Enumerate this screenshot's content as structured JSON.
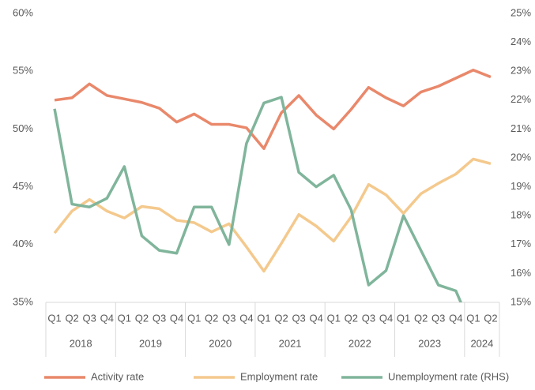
{
  "chart_data": {
    "type": "line",
    "categories": [
      "Q1",
      "Q2",
      "Q3",
      "Q4",
      "Q1",
      "Q2",
      "Q3",
      "Q4",
      "Q1",
      "Q2",
      "Q3",
      "Q4",
      "Q1",
      "Q2",
      "Q3",
      "Q4",
      "Q1",
      "Q2",
      "Q3",
      "Q4",
      "Q1",
      "Q2",
      "Q3",
      "Q4",
      "Q1",
      "Q2"
    ],
    "category_groups": [
      {
        "label": "2018",
        "span": 4
      },
      {
        "label": "2019",
        "span": 4
      },
      {
        "label": "2020",
        "span": 4
      },
      {
        "label": "2021",
        "span": 4
      },
      {
        "label": "2022",
        "span": 4
      },
      {
        "label": "2023",
        "span": 4
      },
      {
        "label": "2024",
        "span": 2
      }
    ],
    "series": [
      {
        "name": "Activity rate",
        "color": "#e9886b",
        "values": [
          52.5,
          52.7,
          53.9,
          52.9,
          52.6,
          52.3,
          51.8,
          50.6,
          51.3,
          50.4,
          50.4,
          50.1,
          48.3,
          51.4,
          52.9,
          51.2,
          50.0,
          51.7,
          53.6,
          52.7,
          52.0,
          53.2,
          53.7,
          54.4,
          55.1,
          54.5
        ]
      },
      {
        "name": "Employment rate",
        "color": "#f4c98d",
        "values": [
          41.0,
          42.9,
          43.9,
          42.9,
          42.3,
          43.3,
          43.1,
          42.1,
          41.9,
          41.1,
          41.8,
          39.8,
          37.7,
          40.1,
          42.6,
          41.6,
          40.3,
          42.4,
          45.2,
          44.3,
          42.7,
          44.4,
          45.3,
          46.1,
          47.4,
          47.0
        ]
      },
      {
        "name": "Unemployment rate (RHS)",
        "color": "#80b59b",
        "axis": "y2",
        "values": [
          21.7,
          18.4,
          18.3,
          18.6,
          19.7,
          17.3,
          16.8,
          16.7,
          18.3,
          18.3,
          17.0,
          20.5,
          21.9,
          22.1,
          19.5,
          19.0,
          19.4,
          18.2,
          15.6,
          16.1,
          18.0,
          16.8,
          15.6,
          15.4,
          14.0,
          null
        ]
      }
    ],
    "ylim": [
      35,
      60
    ],
    "yticks": [
      {
        "value": 35,
        "label": "35%"
      },
      {
        "value": 40,
        "label": "40%"
      },
      {
        "value": 45,
        "label": "45%"
      },
      {
        "value": 50,
        "label": "50%"
      },
      {
        "value": 55,
        "label": "55%"
      },
      {
        "value": 60,
        "label": "60%"
      }
    ],
    "y2lim": [
      15,
      25
    ],
    "y2ticks": [
      {
        "value": 15,
        "label": "15%"
      },
      {
        "value": 16,
        "label": "16%"
      },
      {
        "value": 17,
        "label": "17%"
      },
      {
        "value": 18,
        "label": "18%"
      },
      {
        "value": 19,
        "label": "19%"
      },
      {
        "value": 20,
        "label": "20%"
      },
      {
        "value": 21,
        "label": "21%"
      },
      {
        "value": 22,
        "label": "22%"
      },
      {
        "value": 23,
        "label": "23%"
      },
      {
        "value": 24,
        "label": "24%"
      },
      {
        "value": 25,
        "label": "25%"
      }
    ],
    "grid": false,
    "legend": "bottom"
  }
}
